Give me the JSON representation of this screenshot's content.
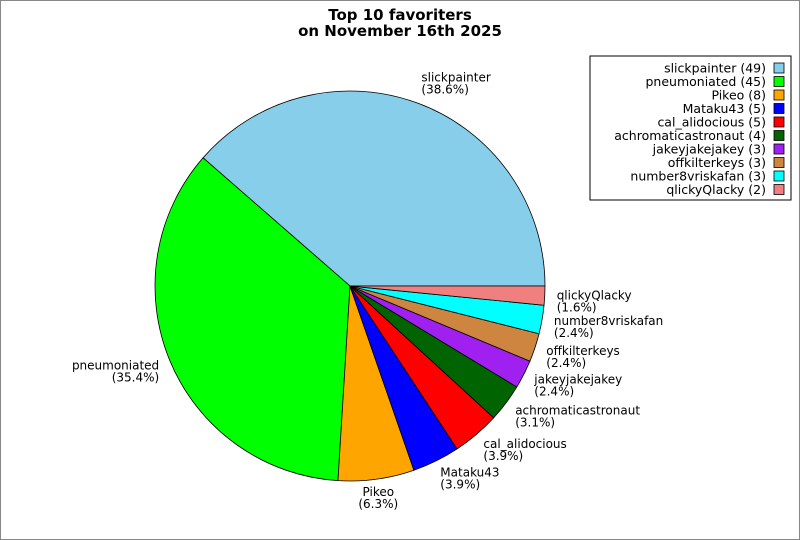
{
  "chart_data": {
    "type": "pie",
    "title_lines": [
      "Top 10 favoriters",
      "on November 16th 2025"
    ],
    "legend_position": "top-right",
    "slices": [
      {
        "label": "slickpainter",
        "value": 49,
        "percent_text": "(38.6%)",
        "legend_text": "slickpainter (49)",
        "color": "#87ceeb"
      },
      {
        "label": "pneumoniated",
        "value": 45,
        "percent_text": "(35.4%)",
        "legend_text": "pneumoniated (45)",
        "color": "#00ff00"
      },
      {
        "label": "Pikeo",
        "value": 8,
        "percent_text": "(6.3%)",
        "legend_text": "Pikeo (8)",
        "color": "#ffa500"
      },
      {
        "label": "Mataku43",
        "value": 5,
        "percent_text": "(3.9%)",
        "legend_text": "Mataku43 (5)",
        "color": "#0000ff"
      },
      {
        "label": "cal_alidocious",
        "value": 5,
        "percent_text": "(3.9%)",
        "legend_text": "cal_alidocious (5)",
        "color": "#ff0000"
      },
      {
        "label": "achromaticastronaut",
        "value": 4,
        "percent_text": "(3.1%)",
        "legend_text": "achromaticastronaut (4)",
        "color": "#006400"
      },
      {
        "label": "jakeyjakejakey",
        "value": 3,
        "percent_text": "(2.4%)",
        "legend_text": "jakeyjakejakey (3)",
        "color": "#a020f0"
      },
      {
        "label": "offkilterkeys",
        "value": 3,
        "percent_text": "(2.4%)",
        "legend_text": "offkilterkeys (3)",
        "color": "#cd853f"
      },
      {
        "label": "number8vriskafan",
        "value": 3,
        "percent_text": "(2.4%)",
        "legend_text": "number8vriskafan (3)",
        "color": "#00ffff"
      },
      {
        "label": "qlickyQlacky",
        "value": 2,
        "percent_text": "(1.6%)",
        "legend_text": "qlickyQlacky (2)",
        "color": "#f08080"
      }
    ]
  }
}
